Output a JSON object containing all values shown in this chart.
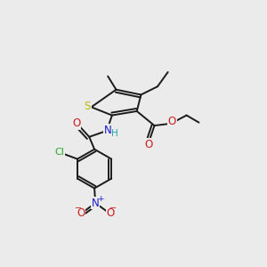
{
  "bg_color": "#ebebeb",
  "fig_size": [
    3.0,
    3.0
  ],
  "dpi": 100,
  "bond_color": "#1a1a1a",
  "bond_lw": 1.4,
  "atom_colors": {
    "S": "#b8b800",
    "N": "#1a1acc",
    "O": "#cc1a1a",
    "Cl": "#22aa22",
    "H": "#22aaaa"
  }
}
